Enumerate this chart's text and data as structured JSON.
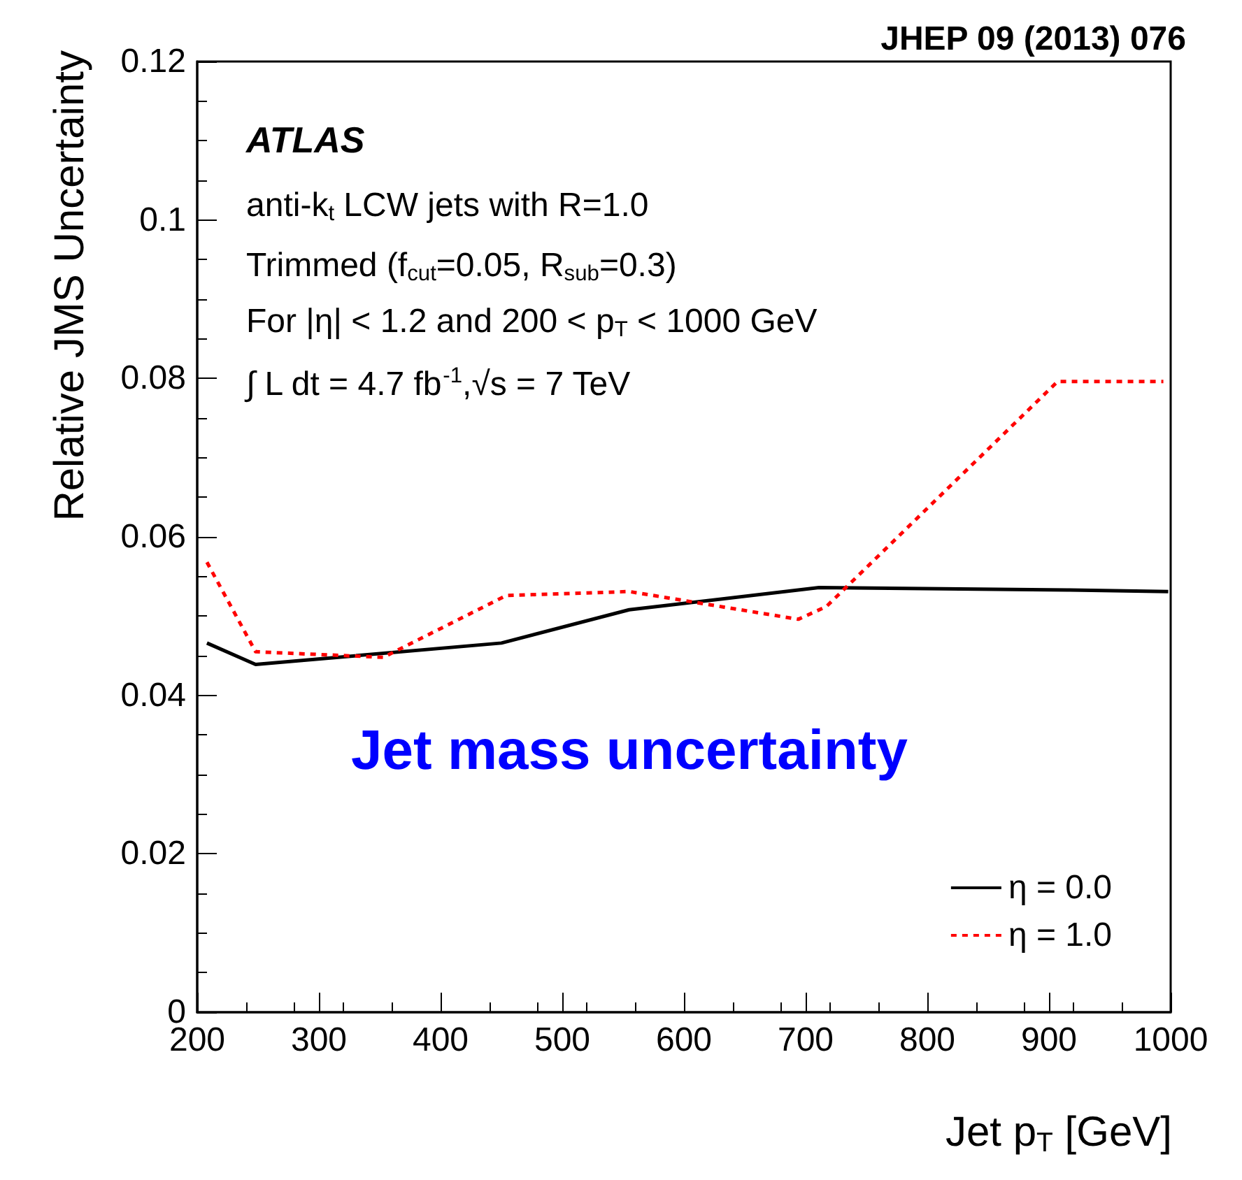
{
  "chart_data": {
    "type": "line",
    "xlabel": "Jet p$_{T}$ [GeV]",
    "ylabel": "Relative JMS Uncertainty",
    "annotations": [
      "JHEP 09 (2013) 076",
      "ATLAS",
      "anti-k$_{t}$ LCW jets with R=1.0",
      "Trimmed (f$_{cut}$=0.05, R$_{sub}$=0.3)",
      "For |η| < 1.2 and 200 < p$_{T}$ < 1000 GeV",
      "∫ L dt = 4.7 fb$^{-1}$,√s = 7 TeV",
      "Jet mass uncertainty"
    ],
    "series": [
      {
        "name": "η = 0.0",
        "color": "#000000",
        "line_style": "solid",
        "x": [
          208,
          248,
          450,
          555,
          711,
          917,
          998
        ],
        "values": [
          0.0466,
          0.0439,
          0.0466,
          0.0508,
          0.0536,
          0.0533,
          0.0531
        ]
      },
      {
        "name": "η = 1.0",
        "color": "#ff0000",
        "line_style": "dashed",
        "x": [
          208,
          248,
          353,
          454,
          555,
          694,
          717,
          907,
          994
        ],
        "values": [
          0.0568,
          0.0455,
          0.0448,
          0.0526,
          0.0531,
          0.0496,
          0.0512,
          0.0796,
          0.0796
        ]
      }
    ],
    "xlim": [
      200,
      1000
    ],
    "xticks": [
      200,
      300,
      400,
      500,
      600,
      700,
      800,
      900,
      1000
    ],
    "ylim": [
      0,
      0.12
    ],
    "yticks": [
      0,
      0.02,
      0.04,
      0.06,
      0.08,
      0.1,
      0.12
    ],
    "grid": false,
    "legend": "bottom right",
    "marker": "none"
  }
}
